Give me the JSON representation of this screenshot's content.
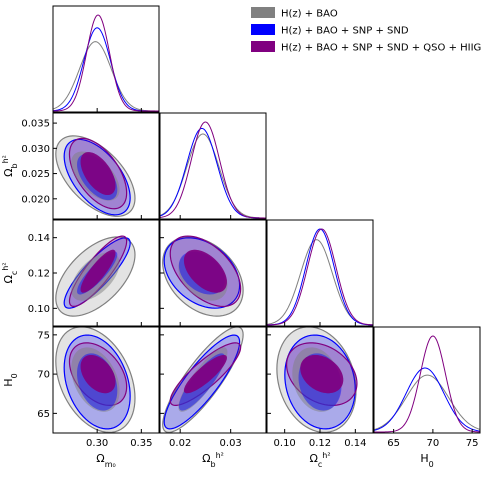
{
  "chart_data": {
    "type": "corner",
    "parameters": [
      {
        "key": "om",
        "label_main": "Ω",
        "label_sub": "m₀",
        "label_sup": "",
        "range": [
          0.25,
          0.37
        ],
        "ticks": [
          0.3,
          0.35
        ],
        "tick_labels": [
          "0.30",
          "0.35"
        ]
      },
      {
        "key": "ob",
        "label_main": "Ω",
        "label_sub": "b",
        "label_sup": "h²",
        "range": [
          0.016,
          0.037
        ],
        "ticks": [
          0.02,
          0.025,
          0.03,
          0.035
        ],
        "tick_labels": [
          "0.020",
          "0.025",
          "0.030",
          "0.035"
        ],
        "x_ticks": [
          0.02,
          0.03
        ],
        "x_tick_labels": [
          "0.02",
          "0.03"
        ]
      },
      {
        "key": "oc",
        "label_main": "Ω",
        "label_sub": "c",
        "label_sup": "h²",
        "range": [
          0.09,
          0.15
        ],
        "ticks": [
          0.1,
          0.12,
          0.14
        ],
        "tick_labels": [
          "0.10",
          "0.12",
          "0.14"
        ]
      },
      {
        "key": "h0",
        "label_main": "H",
        "label_sub": "0",
        "label_sup": "",
        "range": [
          62.5,
          76
        ],
        "ticks": [
          65,
          70,
          75
        ],
        "tick_labels": [
          "65",
          "70",
          "75"
        ]
      }
    ],
    "series": [
      {
        "name": "H(z) + BAO",
        "color": "#808080",
        "mean": {
          "om": 0.298,
          "ob": 0.0245,
          "oc": 0.118,
          "h0": 69.3
        },
        "sigma": {
          "om": 0.018,
          "ob": 0.0032,
          "oc": 0.009,
          "h0": 2.7
        },
        "corr": {
          "om_ob": -0.55,
          "om_oc": 0.55,
          "om_h0": -0.35,
          "ob_oc": -0.35,
          "ob_h0": 0.85,
          "oc_h0": -0.2
        }
      },
      {
        "name": "H(z) + BAO + SNP + SND",
        "color": "#0000ff",
        "mean": {
          "om": 0.3,
          "ob": 0.0243,
          "oc": 0.12,
          "h0": 69.0
        },
        "sigma": {
          "om": 0.015,
          "ob": 0.003,
          "oc": 0.008,
          "h0": 2.4
        },
        "corr": {
          "om_ob": -0.55,
          "om_oc": 0.85,
          "om_h0": -0.3,
          "ob_oc": -0.35,
          "ob_h0": 0.85,
          "oc_h0": -0.15
        }
      },
      {
        "name": "H(z) + BAO + SNP + SND + QSO + HIIG",
        "color": "#800080",
        "mean": {
          "om": 0.301,
          "ob": 0.025,
          "oc": 0.121,
          "h0": 70.0
        },
        "sigma": {
          "om": 0.013,
          "ob": 0.0028,
          "oc": 0.008,
          "h0": 1.6
        },
        "corr": {
          "om_ob": -0.55,
          "om_oc": 0.85,
          "om_h0": -0.4,
          "ob_oc": -0.5,
          "ob_h0": 0.85,
          "oc_h0": -0.3
        }
      }
    ],
    "contour_levels": [
      "1σ",
      "2σ"
    ],
    "legend_position": "top-right"
  }
}
